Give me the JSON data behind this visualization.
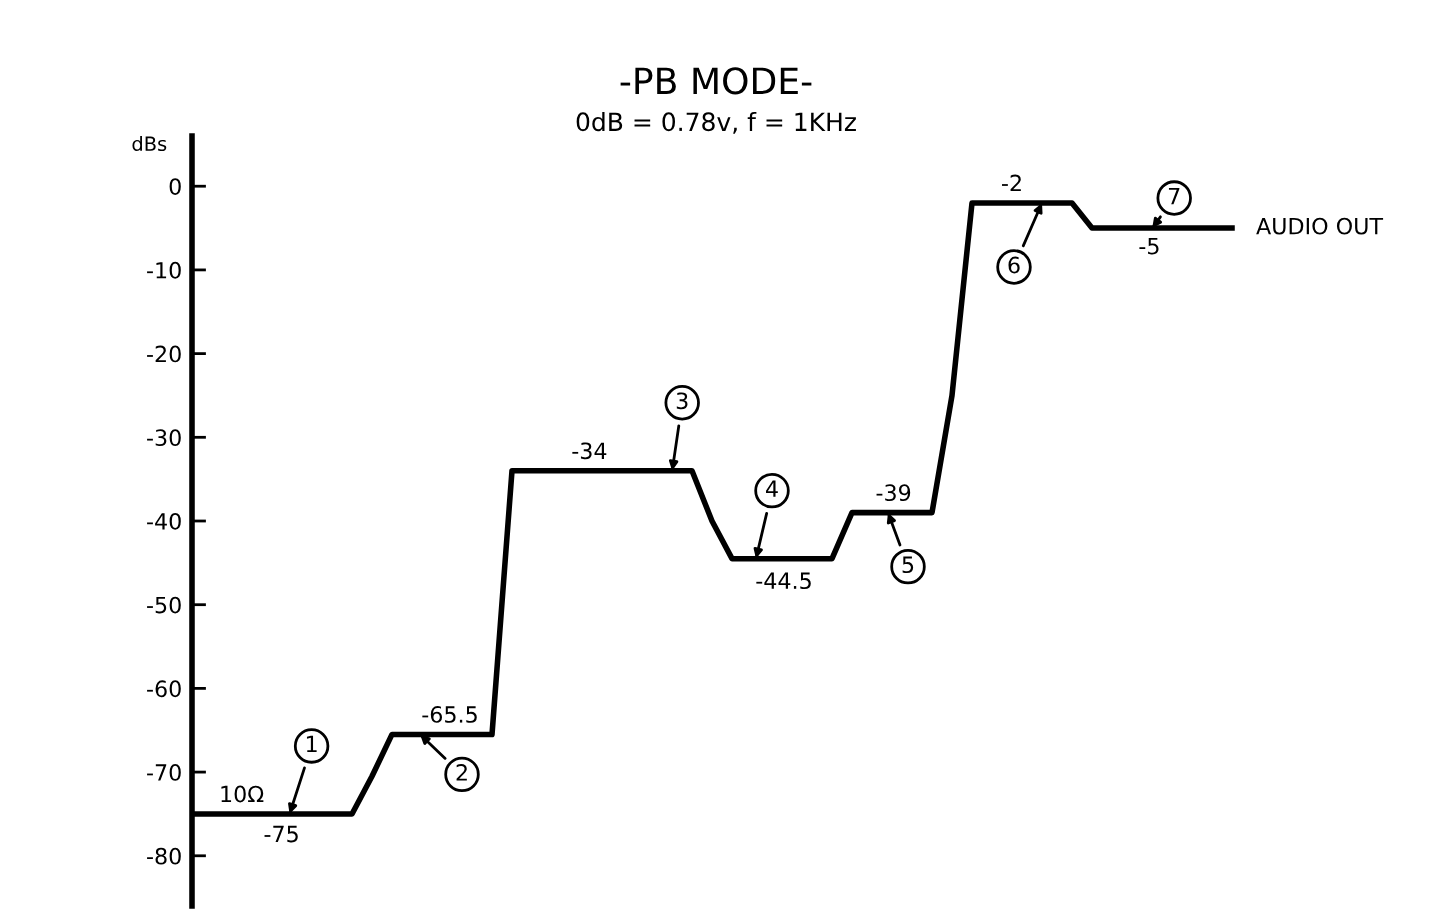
{
  "chart_data": {
    "type": "line",
    "title": "-PB MODE-",
    "subtitle": "0dB = 0.78v, f = 1KHz",
    "ylabel": "dBs",
    "categories": [
      null,
      null,
      null,
      null,
      null,
      null,
      null,
      null,
      null,
      null,
      null,
      null,
      null,
      null,
      null,
      null,
      null,
      null,
      null,
      null,
      null,
      null,
      null,
      null,
      null,
      null,
      null,
      null,
      null,
      null,
      null,
      null,
      null,
      null,
      null,
      null,
      null,
      null,
      null,
      null,
      null,
      null,
      null,
      null,
      null,
      null,
      null,
      null,
      null,
      null,
      null,
      null,
      null,
      null,
      null,
      null,
      null,
      null,
      null,
      null,
      null,
      null,
      null
    ],
    "series": [
      {
        "color": "#000000",
        "values": [
          -75,
          -75,
          -75,
          -75,
          -75,
          -75,
          -75,
          -75,
          -75,
          -70.5,
          -65.5,
          -65.5,
          -65.5,
          -65.5,
          -65.5,
          -65.5,
          -34,
          -34,
          -34,
          -34,
          -34,
          -34,
          -34,
          -34,
          -34,
          -34,
          -40,
          -44.5,
          -44.5,
          -44.5,
          -44.5,
          -44.5,
          -44.5,
          -39,
          -39,
          -39,
          -39,
          -39,
          -25,
          -2,
          -2,
          -2,
          -2,
          -2,
          -2,
          -5,
          -5,
          -5,
          -5,
          -5,
          -5,
          -5,
          -5,
          null,
          null,
          null,
          null,
          null,
          null,
          null,
          null,
          null,
          null
        ]
      }
    ],
    "ylim": [
      -86,
      6
    ],
    "yticks": [
      0,
      -10,
      -20,
      -30,
      -40,
      -50,
      -60,
      -70,
      -80
    ],
    "tick_labels": "y",
    "grid": false,
    "legend": false,
    "marker": "none",
    "line_style": "solid",
    "annotations": [
      {
        "text": "10Ω",
        "y": -75
      },
      {
        "text": "-75",
        "y": -75
      },
      {
        "text": "-65.5",
        "y": -65.5
      },
      {
        "text": "-34",
        "y": -34
      },
      {
        "text": "-44.5",
        "y": -44.5
      },
      {
        "text": "-39",
        "y": -39
      },
      {
        "text": "-2",
        "y": -2
      },
      {
        "text": "-5",
        "y": -5
      },
      "AUDIO OUT",
      {
        "text": "1",
        "y": -75
      },
      {
        "text": "2",
        "y": -65.5
      },
      {
        "text": "3",
        "y": -34
      },
      {
        "text": "4",
        "y": -44.5
      },
      {
        "text": "5",
        "y": -39
      },
      {
        "text": "6",
        "y": -2
      },
      {
        "text": "7",
        "y": -5
      }
    ]
  }
}
